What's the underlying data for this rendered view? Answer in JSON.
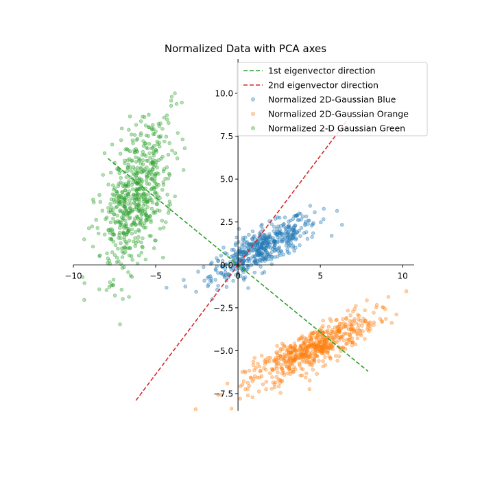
{
  "chart_data": {
    "type": "scatter",
    "title": "Normalized Data with PCA axes",
    "xlabel": "",
    "ylabel": "",
    "xlim": [
      -10,
      10.7
    ],
    "ylim": [
      -8.5,
      12
    ],
    "xticks": [
      -10,
      -5,
      0,
      5,
      10
    ],
    "xtick_labels": [
      "−10",
      "−5",
      "0",
      "5",
      "10"
    ],
    "yticks": [
      -7.5,
      -5.0,
      -2.5,
      0.0,
      2.5,
      5.0,
      7.5,
      10.0
    ],
    "ytick_labels": [
      "−7.5",
      "−5.0",
      "−2.5",
      "0.0",
      "2.5",
      "5.0",
      "7.5",
      "10.0"
    ],
    "spines": "centered at origin",
    "grid": false,
    "legend_position": "top-right",
    "series": [
      {
        "name": "Normalized 2D-Gaussian Blue",
        "kind": "scatter",
        "color": "#1f77b4",
        "center": [
          1.5,
          1.0
        ],
        "spread_major": 1.8,
        "spread_minor": 0.5,
        "angle_deg": 27,
        "count": 500
      },
      {
        "name": "Normalized 2D-Gaussian Orange",
        "kind": "scatter",
        "color": "#ff7f0e",
        "center": [
          4.5,
          -4.9
        ],
        "spread_major": 2.1,
        "spread_minor": 0.5,
        "angle_deg": 27,
        "count": 600
      },
      {
        "name": "Normalized 2-D Gaussian Green",
        "kind": "scatter",
        "color": "#2ca02c",
        "center": [
          -6.2,
          3.9
        ],
        "spread_major": 2.2,
        "spread_minor": 0.9,
        "angle_deg": 72,
        "count": 600
      }
    ],
    "lines": [
      {
        "name": "1st eigenvector direction",
        "color": "#2ca02c",
        "dashed": true,
        "x": [
          -7.9,
          7.9
        ],
        "y": [
          6.2,
          -6.2
        ]
      },
      {
        "name": "2nd eigenvector direction",
        "color": "#d62728",
        "dashed": true,
        "x": [
          -6.2,
          7.0
        ],
        "y": [
          -7.9,
          8.9
        ]
      }
    ]
  }
}
